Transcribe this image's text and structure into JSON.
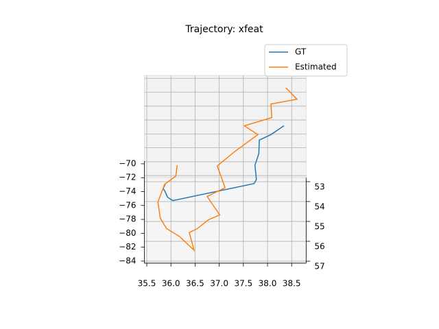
{
  "chart_data": {
    "type": "line3d",
    "title": "Trajectory: xfeat",
    "xlim": [
      35.45,
      38.8
    ],
    "ylim": [
      52.8,
      57.1
    ],
    "zlim": [
      -84.3,
      -69.6
    ],
    "xticks": [
      35.5,
      {
        "value": 36,
        "label": "36.0"
      },
      36.5,
      {
        "value": 37,
        "label": "37.0"
      },
      37.5,
      {
        "value": 38,
        "label": "38.0"
      },
      38.5
    ],
    "yticks": [
      53,
      54,
      55,
      56,
      57
    ],
    "zticks": [
      {
        "value": -84,
        "label": "−84"
      },
      {
        "value": -82,
        "label": "−82"
      },
      {
        "value": -80,
        "label": "−80"
      },
      {
        "value": -78,
        "label": "−78"
      },
      {
        "value": -76,
        "label": "−76"
      },
      {
        "value": -74,
        "label": "−74"
      },
      {
        "value": -72,
        "label": "−72"
      },
      {
        "value": -70,
        "label": "−70"
      }
    ],
    "grid": true,
    "legend": "upper right",
    "series": [
      {
        "name": "GT",
        "color": "#1f77b4",
        "x": [
          38.34,
          38.07,
          37.83,
          37.82,
          37.74,
          37.77,
          37.72,
          36.04,
          35.93,
          35.88,
          35.84,
          35.88
        ],
        "y": [
          54.0,
          54.2,
          54.3,
          54.6,
          54.9,
          55.2,
          55.3,
          55.7,
          55.6,
          55.5,
          55.4,
          55.3
        ],
        "z": [
          -73.4,
          -74.1,
          -74.6,
          -75.7,
          -76.5,
          -77.7,
          -78.0,
          -79.3,
          -79.1,
          -78.6,
          -78.4,
          -78.1
        ]
      },
      {
        "name": "Estimated",
        "color": "#ff7f0e",
        "x": [
          36.13,
          36.1,
          35.87,
          35.73,
          35.78,
          35.91,
          36.18,
          36.48,
          36.38,
          36.55,
          36.78,
          37.01,
          36.75,
          37.12,
          36.96,
          37.32,
          37.8,
          37.52,
          38.09,
          38.07,
          38.61,
          38.38
        ],
        "y": [
          54.9,
          55.1,
          55.3,
          55.7,
          56.1,
          56.3,
          56.5,
          56.8,
          56.4,
          56.3,
          56.1,
          56.0,
          55.6,
          55.4,
          54.9,
          54.6,
          54.2,
          54.0,
          53.8,
          53.5,
          53.4,
          53.1
        ],
        "z": [
          -76.5,
          -77.5,
          -78.1,
          -79.5,
          -80.7,
          -81.6,
          -82.2,
          -83.3,
          -81.9,
          -81.6,
          -80.9,
          -80.5,
          -79.0,
          -78.3,
          -76.6,
          -75.4,
          -74.1,
          -73.4,
          -72.8,
          -71.7,
          -71.3,
          -70.5
        ]
      }
    ]
  }
}
